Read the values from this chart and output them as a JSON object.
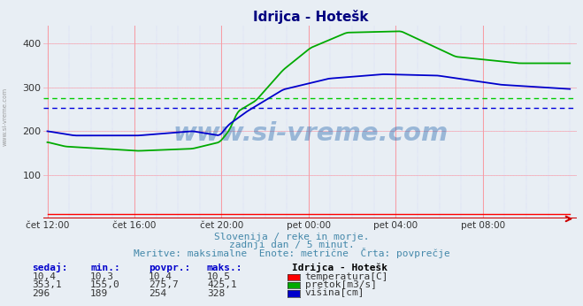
{
  "title": "Idrijca - Hotešk",
  "fig_bg_color": "#e8eef4",
  "plot_bg_color": "#e8eef4",
  "subtitle_lines": [
    "Slovenija / reke in morje.",
    "zadnji dan / 5 minut.",
    "Meritve: maksimalne  Enote: metrične  Črta: povprečje"
  ],
  "xlabel_ticks": [
    "čet 12:00",
    "čet 16:00",
    "čet 20:00",
    "pet 00:00",
    "pet 04:00",
    "pet 08:00"
  ],
  "xlabel_tick_positions": [
    0,
    48,
    96,
    144,
    192,
    240
  ],
  "total_points": 289,
  "ylim": [
    0,
    440
  ],
  "yticks": [
    100,
    200,
    300,
    400
  ],
  "vgrid_color": "#ff9999",
  "hgrid_color": "#ffcccc",
  "avg_pretok": 275.7,
  "avg_visina": 254,
  "temp_color": "#ff0000",
  "pretok_color": "#00aa00",
  "visina_color": "#0000cc",
  "avg_line_color_pretok": "#00cc00",
  "avg_line_color_visina": "#0000dd",
  "watermark": "www.si-vreme.com",
  "watermark_color": "#1a5fa8",
  "table_header": [
    "sedaj:",
    "min.:",
    "povpr.:",
    "maks.:"
  ],
  "table_data": [
    [
      "10,4",
      "10,3",
      "10,4",
      "10,5"
    ],
    [
      "353,1",
      "155,0",
      "275,7",
      "425,1"
    ],
    [
      "296",
      "189",
      "254",
      "328"
    ]
  ],
  "legend_labels": [
    "temperatura[C]",
    "pretok[m3/s]",
    "višina[cm]"
  ],
  "legend_colors": [
    "#ff0000",
    "#00aa00",
    "#0000cc"
  ],
  "station_label": "Idrijca - Hotešk",
  "side_watermark": "www.si-vreme.com"
}
